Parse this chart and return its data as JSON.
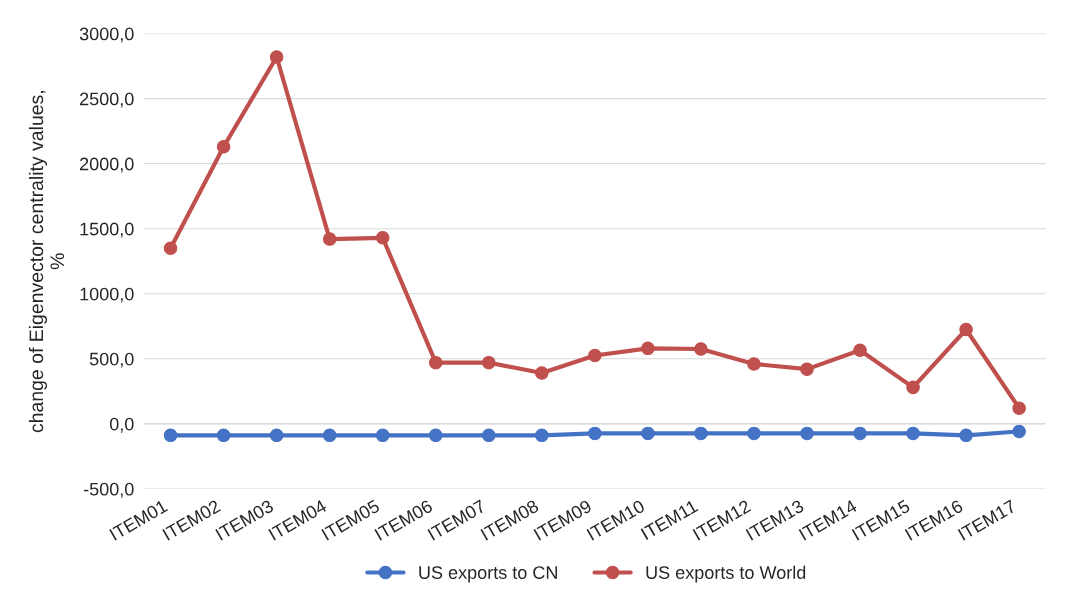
{
  "chart_data": {
    "type": "line",
    "ylabel": "change of Eigenvector centrality values,\n%",
    "categories": [
      "ITEM01",
      "ITEM02",
      "ITEM03",
      "ITEM04",
      "ITEM05",
      "ITEM06",
      "ITEM07",
      "ITEM08",
      "ITEM09",
      "ITEM10",
      "ITEM11",
      "ITEM12",
      "ITEM13",
      "ITEM14",
      "ITEM15",
      "ITEM16",
      "ITEM17"
    ],
    "series": [
      {
        "name": "US exports to CN",
        "color": "#4472c4",
        "values": [
          -89,
          -89,
          -89,
          -89,
          -89,
          -89,
          -89,
          -89,
          -74,
          -74,
          -74,
          -74,
          -74,
          -74,
          -74,
          -89,
          -59
        ]
      },
      {
        "name": "US exports to World",
        "color": "#c0504d",
        "values": [
          1350,
          2130,
          2820,
          1420,
          1430,
          470,
          470,
          390,
          525,
          580,
          575,
          460,
          420,
          565,
          280,
          725,
          120
        ]
      }
    ],
    "ylim": [
      -500,
      3000
    ],
    "yticks": [
      {
        "value": -500,
        "label": "-500,0"
      },
      {
        "value": 0,
        "label": "0,0"
      },
      {
        "value": 500,
        "label": "500,0"
      },
      {
        "value": 1000,
        "label": "1000,0"
      },
      {
        "value": 1500,
        "label": "1500,0"
      },
      {
        "value": 2000,
        "label": "2000,0"
      },
      {
        "value": 2500,
        "label": "2500,0"
      },
      {
        "value": 3000,
        "label": "3000,0"
      }
    ],
    "grid": "y",
    "legend": "bottom",
    "marker": "circle",
    "line_style": "solid"
  }
}
